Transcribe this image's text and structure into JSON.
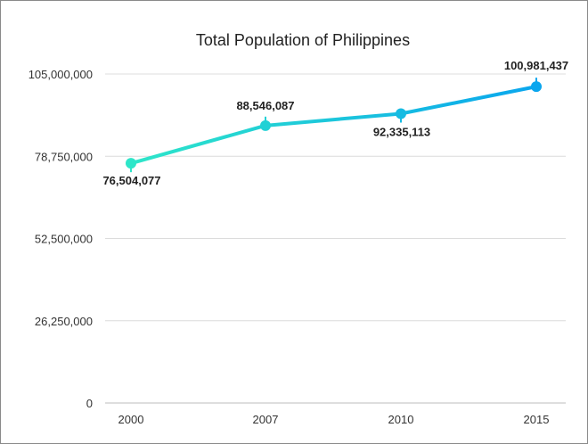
{
  "chart_data": {
    "type": "line",
    "title": "Total Population of Philippines",
    "xlabel": "",
    "ylabel": "",
    "categories": [
      "2000",
      "2007",
      "2010",
      "2015"
    ],
    "series": [
      {
        "values": [
          76504077,
          88546087,
          92335113,
          100981437
        ]
      }
    ],
    "data_labels": [
      "76,504,077",
      "88,546,087",
      "92,335,113",
      "100,981,437"
    ],
    "ylim": [
      0,
      105000000
    ],
    "yticks": [
      0,
      26250000,
      52500000,
      78750000,
      105000000
    ],
    "ytick_labels": [
      "0",
      "26,250,000",
      "52,500,000",
      "78,750,000",
      "105,000,000"
    ],
    "grid": true,
    "legend": "none",
    "colors": {
      "start": "#2ee6c9",
      "end": "#0aa6ee"
    }
  }
}
